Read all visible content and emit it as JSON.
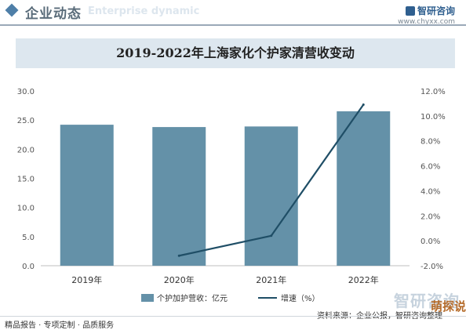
{
  "header": {
    "title": "企业动态",
    "title_en": "Enterprise dynamic",
    "brand": "智研咨询",
    "url": "www.chyxx.com"
  },
  "chart_data": {
    "type": "bar",
    "title": "2019-2022年上海家化个护家清营收变动",
    "categories": [
      "2019年",
      "2020年",
      "2021年",
      "2022年"
    ],
    "series": [
      {
        "name": "个护加护营收：亿元",
        "kind": "bar",
        "axis": "left",
        "values": [
          24.2,
          23.8,
          23.9,
          26.5
        ]
      },
      {
        "name": "增速（%）",
        "kind": "line",
        "axis": "right",
        "values": [
          null,
          -1.2,
          0.4,
          10.9
        ]
      }
    ],
    "y_left": {
      "min": 0,
      "max": 30,
      "ticks": [
        "0.0",
        "5.0",
        "10.0",
        "15.0",
        "20.0",
        "25.0",
        "30.0"
      ]
    },
    "y_right": {
      "min": -2,
      "max": 12,
      "ticks": [
        "-2.0%",
        "0.0%",
        "2.0%",
        "4.0%",
        "6.0%",
        "8.0%",
        "10.0%",
        "12.0%"
      ]
    },
    "legend_position": "bottom",
    "colors": {
      "bar": "#6491a8",
      "line": "#1f4e66"
    }
  },
  "footer": {
    "left": "精品报告 · 专项定制 · 品质服务",
    "source": "资料来源：企业公报，智研咨询整理",
    "brand": "智研咨询",
    "badge": "萌探说"
  }
}
